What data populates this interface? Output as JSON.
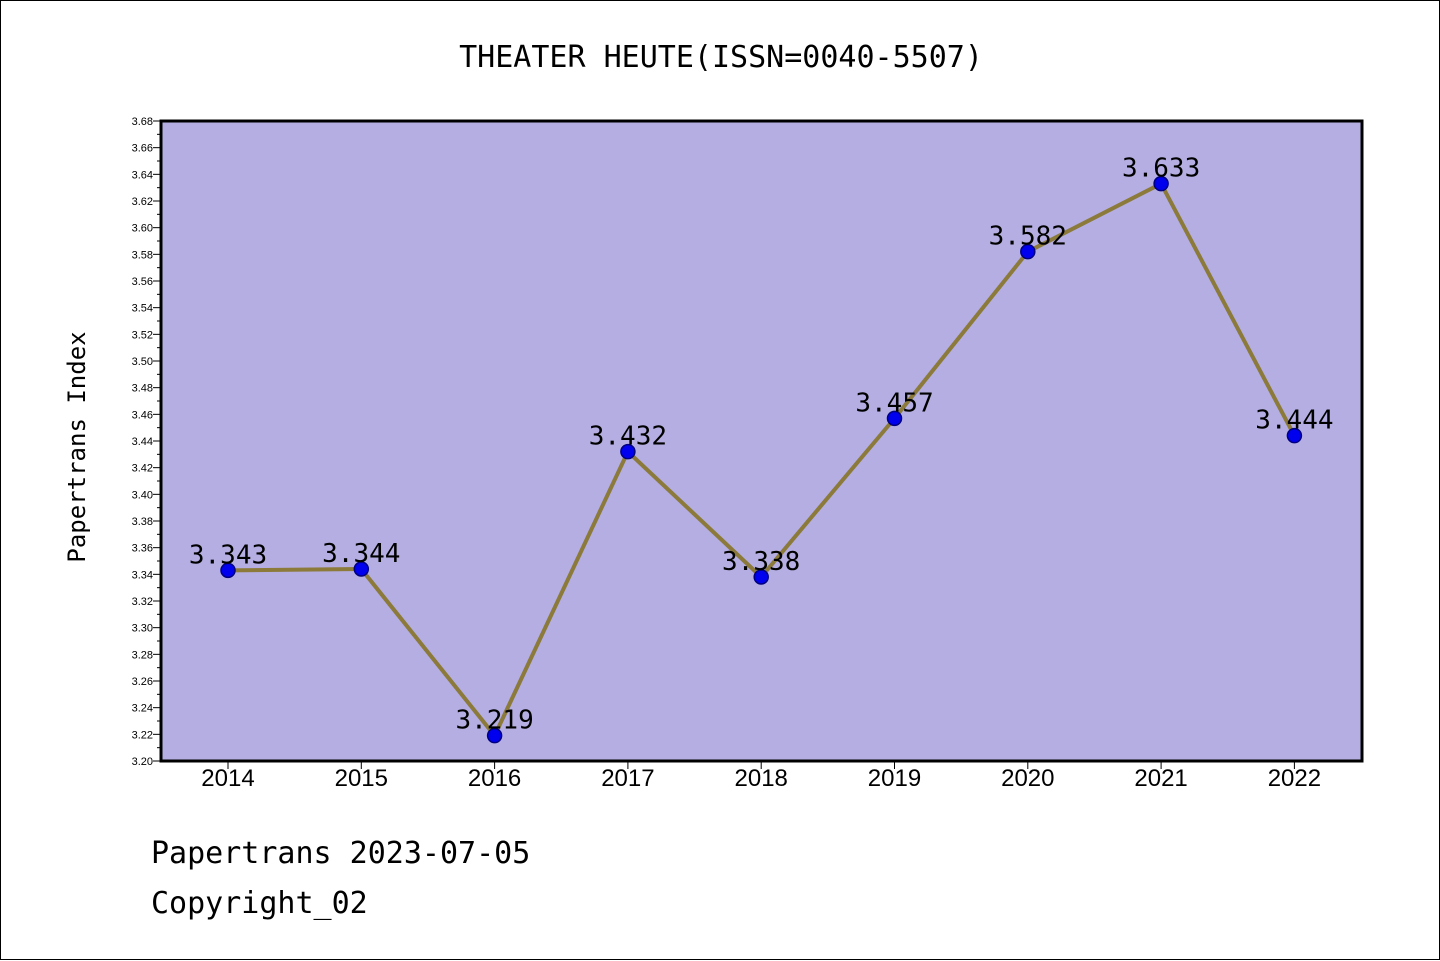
{
  "chart_data": {
    "type": "line",
    "title": "THEATER HEUTE(ISSN=0040-5507)",
    "xlabel": "",
    "ylabel": "Papertrans Index",
    "categories": [
      "2014",
      "2015",
      "2016",
      "2017",
      "2018",
      "2019",
      "2020",
      "2021",
      "2022"
    ],
    "values": [
      3.343,
      3.344,
      3.219,
      3.432,
      3.338,
      3.457,
      3.582,
      3.633,
      3.444
    ],
    "data_labels": [
      "3.343",
      "3.344",
      "3.219",
      "3.432",
      "3.338",
      "3.457",
      "3.582",
      "3.633",
      "3.444"
    ],
    "ylim": [
      3.2,
      3.68
    ],
    "ytick_step": 0.02,
    "grid": false,
    "colors": {
      "plot_background": "#b4aee2",
      "line": "#8b7a3a",
      "marker": "#0000ee",
      "marker_edge": "#000080"
    }
  },
  "footer": {
    "line1": "Papertrans 2023-07-05",
    "line2": "Copyright_02"
  }
}
